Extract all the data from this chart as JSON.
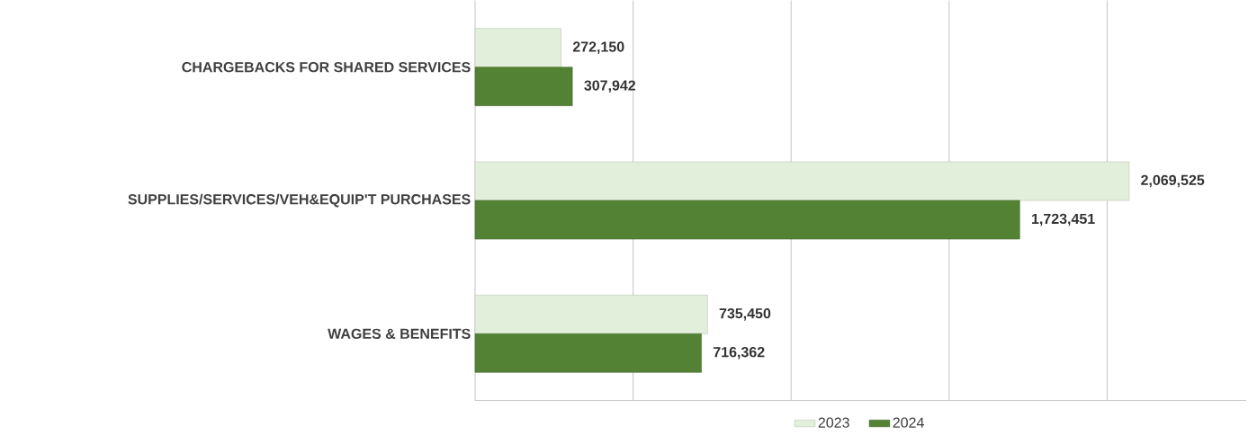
{
  "chart_data": {
    "type": "bar",
    "orientation": "horizontal",
    "categories": [
      "CHARGEBACKS FOR SHARED SERVICES",
      "SUPPLIES/SERVICES/VEH&EQUIP'T PURCHASES",
      "WAGES & BENEFITS"
    ],
    "series": [
      {
        "name": "2023",
        "color": "#e2efda",
        "values": [
          272150,
          2069525,
          735450
        ],
        "value_labels": [
          "272,150",
          "2,069,525",
          "735,450"
        ]
      },
      {
        "name": "2024",
        "color": "#548235",
        "values": [
          307942,
          1723451,
          716362
        ],
        "value_labels": [
          "307,942",
          "1,723,451",
          "716,362"
        ]
      }
    ],
    "xlim": [
      0,
      2440000
    ],
    "xticks": [
      {
        "value": 0,
        "label": null
      },
      {
        "value": 500000,
        "label": null
      },
      {
        "value": 1000000,
        "label": null
      },
      {
        "value": 1500000,
        "label": null
      },
      {
        "value": 2000000,
        "label": null
      }
    ],
    "grid": "x",
    "legend": "bottom",
    "tick_labels": "y"
  }
}
